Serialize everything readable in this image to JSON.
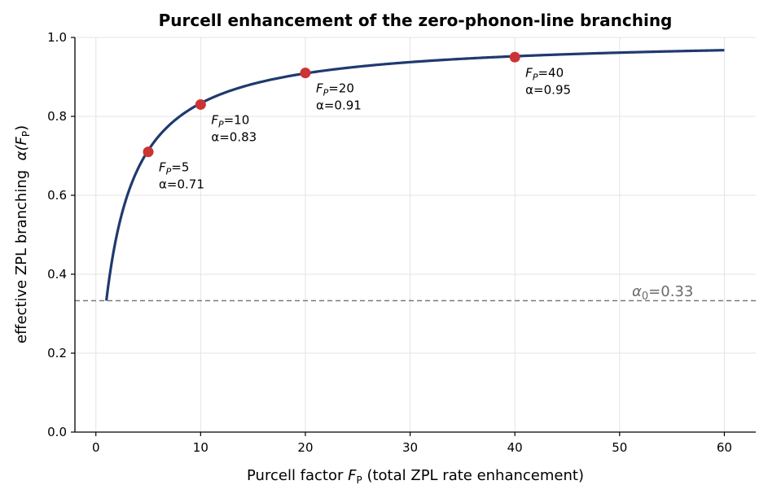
{
  "chart_data": {
    "type": "line",
    "title": "Purcell enhancement of the zero-phonon-line branching",
    "xlabel": {
      "prefix": "Purcell factor ",
      "symbol": "F",
      "subscript": "P",
      "suffix": " (total ZPL rate enhancement)"
    },
    "ylabel": {
      "prefix": "effective ZPL branching  ",
      "symbol": "α(F",
      "subscript": "P",
      "suffix": ")"
    },
    "xlim": [
      -2,
      63
    ],
    "ylim": [
      0,
      1.0
    ],
    "x_ticks": [
      0,
      10,
      20,
      30,
      40,
      50,
      60
    ],
    "y_ticks": [
      0.0,
      0.2,
      0.4,
      0.6,
      0.8,
      1.0
    ],
    "x_tick_labels": [
      "0",
      "10",
      "20",
      "30",
      "40",
      "50",
      "60"
    ],
    "y_tick_labels": [
      "0.0",
      "0.2",
      "0.4",
      "0.6",
      "0.8",
      "1.0"
    ],
    "grid": true,
    "curve": {
      "formula": "alpha = F*a0 / (F*a0 + (1 - a0))",
      "alpha0": 0.333,
      "x_range": [
        1,
        60
      ],
      "color": "#1f3a6e"
    },
    "reference_line": {
      "y": 0.333,
      "label_symbol": "α",
      "label_subscript": "0",
      "label_value": "=0.33",
      "color": "#7a7a7a"
    },
    "markers": [
      {
        "x": 5,
        "y": 0.71,
        "label_f": "=5",
        "label_a": "α=0.71"
      },
      {
        "x": 10,
        "y": 0.83,
        "label_f": "=10",
        "label_a": "α=0.83"
      },
      {
        "x": 20,
        "y": 0.91,
        "label_f": "=20",
        "label_a": "α=0.91"
      },
      {
        "x": 40,
        "y": 0.95,
        "label_f": "=40",
        "label_a": "α=0.95"
      }
    ],
    "marker_symbol": "F",
    "marker_subscript": "P",
    "marker_color": "#cc3333"
  }
}
